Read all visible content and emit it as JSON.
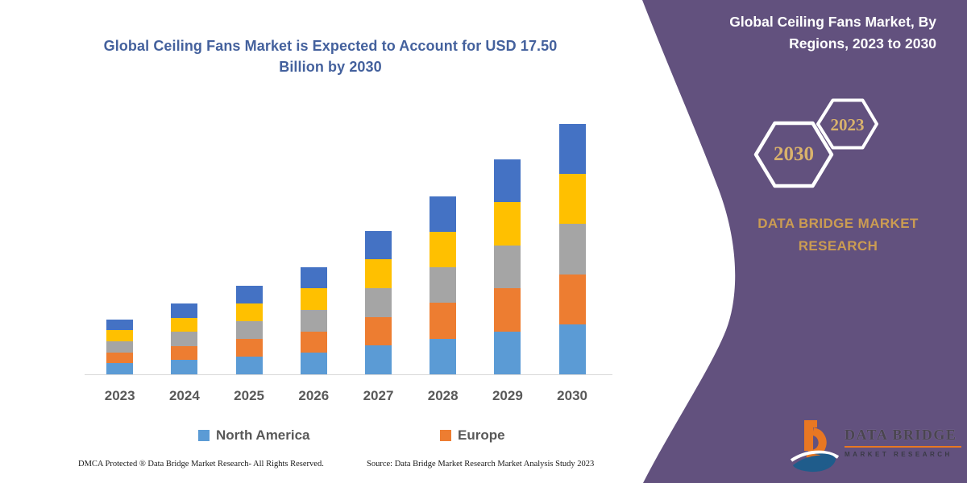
{
  "chart": {
    "title": "Global Ceiling Fans Market is Expected to Account for USD 17.50 Billion by 2030",
    "title_color": "#44619D",
    "footer_left": "DMCA Protected ® Data Bridge Market Research-  All Rights Reserved.",
    "footer_right": "Source: Data Bridge Market Research  Market Analysis Study 2023"
  },
  "chart_data": {
    "type": "bar",
    "stacked": true,
    "categories": [
      "2023",
      "2024",
      "2025",
      "2026",
      "2027",
      "2028",
      "2029",
      "2030"
    ],
    "series": [
      {
        "name": "North America",
        "color": "#5B9BD5",
        "values": [
          0.77,
          0.99,
          1.24,
          1.5,
          2.01,
          2.49,
          3.01,
          3.5
        ]
      },
      {
        "name": "Europe",
        "color": "#ED7D31",
        "values": [
          0.77,
          0.99,
          1.24,
          1.5,
          2.01,
          2.49,
          3.01,
          3.5
        ]
      },
      {
        "name": "(unlabeled gray)",
        "color": "#A5A5A5",
        "values": [
          0.77,
          0.99,
          1.24,
          1.5,
          2.01,
          2.49,
          3.01,
          3.5
        ]
      },
      {
        "name": "(unlabeled yellow)",
        "color": "#FFC000",
        "values": [
          0.77,
          0.99,
          1.24,
          1.5,
          2.01,
          2.49,
          3.01,
          3.5
        ]
      },
      {
        "name": "(unlabeled blue)",
        "color": "#4472C4",
        "values": [
          0.77,
          0.99,
          1.24,
          1.5,
          2.01,
          2.49,
          3.01,
          3.5
        ]
      }
    ],
    "totals": [
      3.85,
      4.95,
      6.2,
      7.5,
      10.05,
      12.45,
      15.05,
      17.5
    ],
    "ylim": [
      0,
      17.5
    ],
    "grid": false,
    "y_axis_visible": false,
    "axis_line_color": "#D9D9D9",
    "legend_position": "bottom",
    "legend_visible_entries": [
      "North America",
      "Europe"
    ],
    "tick_label_color": "#595959"
  },
  "legend": {
    "items": [
      {
        "label": "North America",
        "color": "#5B9BD5"
      },
      {
        "label": "Europe",
        "color": "#ED7D31"
      }
    ]
  },
  "panel": {
    "bg": "#62517E",
    "title": "Global Ceiling Fans Market, By Regions, 2023 to 2030",
    "title_color": "#FFFFFF",
    "hex_large_label": "2030",
    "hex_small_label": "2023",
    "hex_outline_color": "#FFFFFF",
    "hex_label_color": "#D9B26C",
    "brand_wordmark": "DATA BRIDGE MARKET RESEARCH",
    "brand_color": "#CB9C52"
  },
  "logo": {
    "line1": "DATA BRIDGE",
    "line2": "MARKET RESEARCH",
    "orange": "#E87722",
    "blue": "#1F5C8B"
  }
}
